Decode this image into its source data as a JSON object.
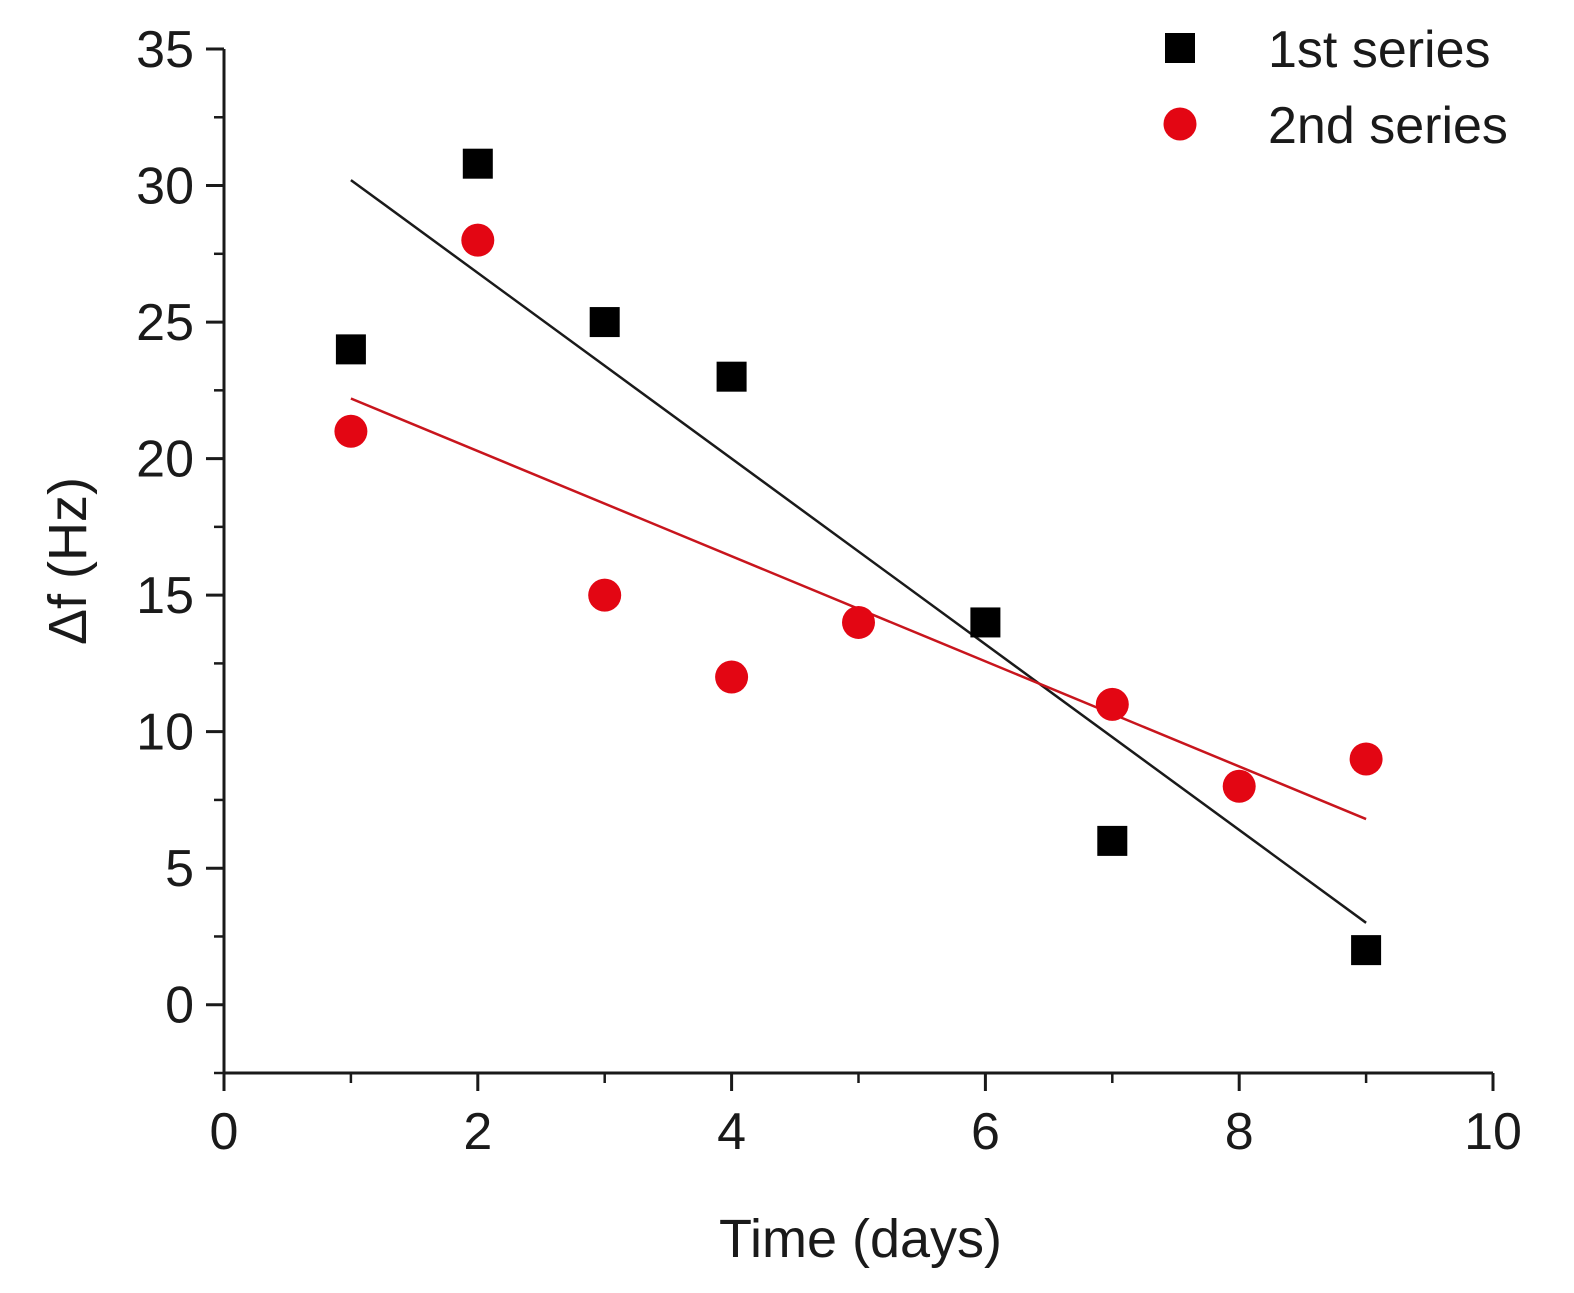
{
  "chart_data": {
    "type": "scatter",
    "title": "",
    "xlabel": "Time (days)",
    "ylabel": "Δf (Hz)",
    "xlim": [
      0,
      10
    ],
    "ylim": [
      -2.5,
      35
    ],
    "x_ticks": [
      0,
      2,
      4,
      6,
      8,
      10
    ],
    "y_ticks": [
      0,
      5,
      10,
      15,
      20,
      25,
      30,
      35
    ],
    "x_tick_labels": [
      "0",
      "2",
      "4",
      "6",
      "8",
      "10"
    ],
    "y_tick_labels": [
      "0",
      "5",
      "10",
      "15",
      "20",
      "25",
      "30",
      "35"
    ],
    "grid": false,
    "legend_position": "top-right",
    "series": [
      {
        "name": "1st series",
        "marker": "square",
        "color": "#000000",
        "x": [
          1,
          2,
          3,
          4,
          6,
          7,
          9
        ],
        "y": [
          24,
          30.8,
          25,
          23,
          14,
          6,
          2
        ],
        "fit": {
          "x": [
            1,
            9
          ],
          "y": [
            30.2,
            3.0
          ],
          "color": "#1a1a1a"
        }
      },
      {
        "name": "2nd series",
        "marker": "circle",
        "color": "#e30613",
        "x": [
          1,
          2,
          3,
          4,
          5,
          7,
          8,
          9
        ],
        "y": [
          21,
          28,
          15,
          12,
          14,
          11,
          8,
          9
        ],
        "fit": {
          "x": [
            1,
            9
          ],
          "y": [
            22.2,
            6.8
          ],
          "color": "#c8151d"
        }
      }
    ]
  }
}
